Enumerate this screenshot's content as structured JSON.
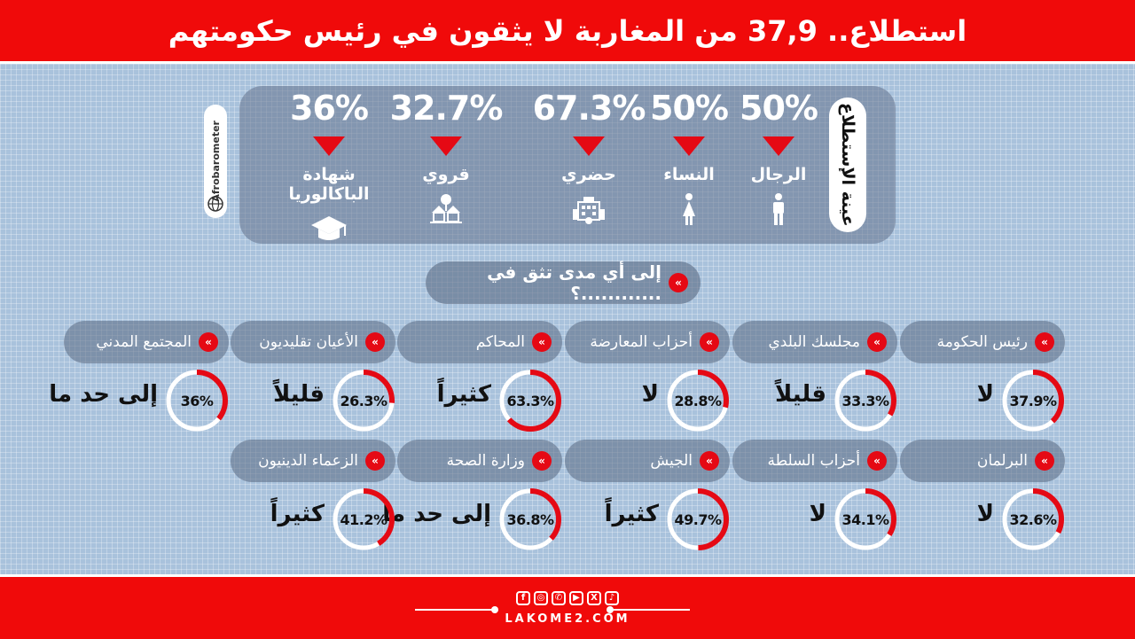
{
  "title": "استطلاع.. 37,9 من المغاربة لا يثقون في رئيس حكومتهم",
  "source": "Afrobarometer",
  "sample": {
    "label": "عينة الإستطلاع",
    "stats": [
      {
        "name": "الرجال",
        "value": "50%",
        "icon": "man-icon"
      },
      {
        "name": "النساء",
        "value": "50%",
        "icon": "woman-icon"
      },
      {
        "name": "حضري",
        "value": "67.3%",
        "icon": "city-icon"
      },
      {
        "name": "قروي",
        "value": "32.7%",
        "icon": "village-icon"
      },
      {
        "name": "شهادة الباكالوريا",
        "value": "36%",
        "icon": "graduation-cap-icon"
      }
    ]
  },
  "question": "إلى أي مدى تثق في ............؟",
  "institutions": [
    {
      "name": "رئيس الحكومة",
      "value": "37.9%",
      "fraction": 0.379,
      "answer": "لا"
    },
    {
      "name": "مجلسك البلدي",
      "value": "33.3%",
      "fraction": 0.333,
      "answer": "قليلاً"
    },
    {
      "name": "أحزاب المعارضة",
      "value": "28.8%",
      "fraction": 0.288,
      "answer": "لا"
    },
    {
      "name": "المحاكم",
      "value": "63.3%",
      "fraction": 0.633,
      "answer": "كثيراً"
    },
    {
      "name": "الأعيان تقليديون",
      "value": "26.3%",
      "fraction": 0.263,
      "answer": "قليلاً"
    },
    {
      "name": "المجتمع المدني",
      "value": "36%",
      "fraction": 0.36,
      "answer": "إلى حد ما"
    },
    {
      "name": "البرلمان",
      "value": "32.6%",
      "fraction": 0.326,
      "answer": "لا"
    },
    {
      "name": "أحزاب السلطة",
      "value": "34.1%",
      "fraction": 0.341,
      "answer": "لا"
    },
    {
      "name": "الجيش",
      "value": "49.7%",
      "fraction": 0.497,
      "answer": "كثيراً"
    },
    {
      "name": "وزارة الصحة",
      "value": "36.8%",
      "fraction": 0.368,
      "answer": "إلى حد ما"
    },
    {
      "name": "الزعماء الدينيون",
      "value": "41.2%",
      "fraction": 0.412,
      "answer": "كثيراً"
    }
  ],
  "footer": {
    "site": "LAKOME2.COM",
    "social": [
      "f",
      "◎",
      "✆",
      "▶",
      "X",
      "♪"
    ]
  },
  "colors": {
    "accent": "#e50914",
    "banner": "#f00a0a",
    "background": "#a9c2dc"
  }
}
